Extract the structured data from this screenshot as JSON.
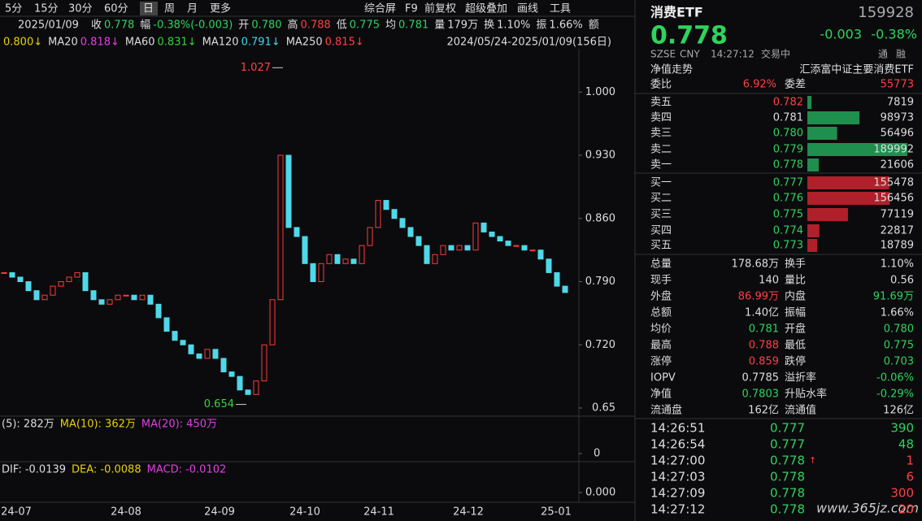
{
  "toolbar": {
    "periods": [
      "5分",
      "15分",
      "30分",
      "60分",
      "日",
      "周",
      "月",
      "更多"
    ],
    "active": "日",
    "tools": [
      "综合屏",
      "F9",
      "前复权",
      "超级叠加",
      "画线",
      "工具"
    ]
  },
  "quote_bar": {
    "date": "2025/01/09",
    "items": [
      {
        "label": "收",
        "value": "0.778",
        "color": "#2fd35c"
      },
      {
        "label": "幅",
        "value": "-0.38%(-0.003)",
        "color": "#2fd35c"
      },
      {
        "label": "开",
        "value": "0.780",
        "color": "#2fd35c"
      },
      {
        "label": "高",
        "value": "0.788",
        "color": "#ff4040"
      },
      {
        "label": "低",
        "value": "0.775",
        "color": "#2fd35c"
      },
      {
        "label": "均",
        "value": "0.781",
        "color": "#2fd35c"
      },
      {
        "label": "量",
        "value": "179万",
        "color": "#dddddd"
      },
      {
        "label": "换",
        "value": "1.10%",
        "color": "#dddddd"
      },
      {
        "label": "振",
        "value": "1.66%",
        "color": "#dddddd"
      },
      {
        "label": "额"
      }
    ]
  },
  "ma_bar": {
    "items": [
      {
        "value": "0.800↓",
        "color": "#e8d200"
      },
      {
        "label": "MA20",
        "value": "0.818↓",
        "color": "#e040e0"
      },
      {
        "label": "MA60",
        "value": "0.831↓",
        "color": "#3ad23a"
      },
      {
        "label": "MA120",
        "value": "0.791↓",
        "color": "#40d8e8"
      },
      {
        "label": "MA250",
        "value": "0.815↓",
        "color": "#ff4040"
      }
    ],
    "range": "2024/05/24-2025/01/09(156日)"
  },
  "chart_data": {
    "type": "candlestick",
    "ylim": [
      0.641,
      1.048
    ],
    "yticks": [
      0.65,
      {
        "value": 0.72,
        "label": "0.720"
      },
      {
        "value": 0.79,
        "label": "0.790"
      },
      {
        "value": 0.86,
        "label": "0.860"
      },
      {
        "value": 0.93,
        "label": "0.930"
      },
      {
        "value": 1,
        "label": "1.000"
      }
    ],
    "x_labels": [
      "24-07",
      "24-08",
      "24-09",
      "24-10",
      "24-11",
      "24-12",
      "25-01"
    ],
    "up_color": "#ff3a3a",
    "down_color": "#4fd8e8",
    "close": [
      0.8,
      0.795,
      0.79,
      0.78,
      0.77,
      0.775,
      0.785,
      0.79,
      0.795,
      0.8,
      0.78,
      0.77,
      0.765,
      0.77,
      0.775,
      0.775,
      0.77,
      0.775,
      0.765,
      0.75,
      0.735,
      0.725,
      0.72,
      0.71,
      0.705,
      0.715,
      0.705,
      0.69,
      0.685,
      0.67,
      0.665,
      0.68,
      0.72,
      0.77,
      0.93,
      0.85,
      0.84,
      0.81,
      0.79,
      0.81,
      0.82,
      0.81,
      0.815,
      0.81,
      0.83,
      0.85,
      0.88,
      0.87,
      0.86,
      0.85,
      0.84,
      0.83,
      0.81,
      0.82,
      0.83,
      0.825,
      0.83,
      0.825,
      0.855,
      0.845,
      0.84,
      0.835,
      0.83,
      0.83,
      0.825,
      0.825,
      0.815,
      0.8,
      0.785,
      0.778
    ],
    "high_mark": 1.027,
    "low_mark": 0.654
  },
  "volume": {
    "labels": [
      {
        "text": "(5): 282万",
        "color": "#dddddd"
      },
      {
        "text": "MA(10): 362万",
        "color": "#e8d200"
      },
      {
        "text": "MA(20): 450万",
        "color": "#e040e0"
      }
    ],
    "yticks": [
      0
    ]
  },
  "macd": {
    "labels": [
      {
        "text": "DIF: -0.0139",
        "color": "#dddddd"
      },
      {
        "text": "DEA: -0.0088",
        "color": "#e8d200"
      },
      {
        "text": "MACD: -0.0102",
        "color": "#e040e0"
      }
    ],
    "yticks": [
      {
        "value": 0,
        "label": "0.000"
      }
    ]
  },
  "panel": {
    "name": "消费ETF",
    "code": "159928",
    "price": "0.778",
    "change": "-0.003",
    "change_pct": "-0.38%",
    "status": [
      "SZSE",
      "CNY",
      "14:27:12",
      "交易中"
    ],
    "flags": [
      "通",
      "融"
    ],
    "nav_label": "净值走势",
    "fund_name": "汇添富中证主要消费ETF",
    "ratio": {
      "label": "委比",
      "value": "6.92%",
      "diff_label": "委差",
      "diff": "55773"
    },
    "sell": [
      {
        "label": "卖五",
        "price": "0.782",
        "color": "#ff4040",
        "volume": 7819
      },
      {
        "label": "卖四",
        "price": "0.781",
        "color": "#dddddd",
        "volume": 98973
      },
      {
        "label": "卖三",
        "price": "0.780",
        "color": "#2fd35c",
        "volume": 56496
      },
      {
        "label": "卖二",
        "price": "0.779",
        "color": "#2fd35c",
        "volume": 189992
      },
      {
        "label": "卖一",
        "price": "0.778",
        "color": "#2fd35c",
        "volume": 21606
      }
    ],
    "buy": [
      {
        "label": "买一",
        "price": "0.777",
        "color": "#2fd35c",
        "volume": 155478
      },
      {
        "label": "买二",
        "price": "0.776",
        "color": "#2fd35c",
        "volume": 156456
      },
      {
        "label": "买三",
        "price": "0.775",
        "color": "#2fd35c",
        "volume": 77119
      },
      {
        "label": "买四",
        "price": "0.774",
        "color": "#2fd35c",
        "volume": 22817
      },
      {
        "label": "买五",
        "price": "0.773",
        "color": "#2fd35c",
        "volume": 18789
      }
    ],
    "sell_color": "#1f8f4e",
    "buy_color": "#b0202a",
    "stats": [
      [
        {
          "label": "总量",
          "value": "178.68万",
          "color": "#dddddd"
        },
        {
          "label": "换手",
          "value": "1.10%",
          "color": "#dddddd"
        }
      ],
      [
        {
          "label": "现手",
          "value": "140",
          "color": "#dddddd"
        },
        {
          "label": "量比",
          "value": "0.56",
          "color": "#dddddd"
        }
      ],
      [
        {
          "label": "外盘",
          "value": "86.99万",
          "color": "#ff4040"
        },
        {
          "label": "内盘",
          "value": "91.69万",
          "color": "#2fd35c"
        }
      ],
      [
        {
          "label": "总额",
          "value": "1.40亿",
          "color": "#dddddd"
        },
        {
          "label": "振幅",
          "value": "1.66%",
          "color": "#dddddd"
        }
      ],
      [
        {
          "label": "均价",
          "value": "0.781",
          "color": "#2fd35c"
        },
        {
          "label": "开盘",
          "value": "0.780",
          "color": "#2fd35c"
        }
      ],
      [
        {
          "label": "最高",
          "value": "0.788",
          "color": "#ff4040"
        },
        {
          "label": "最低",
          "value": "0.775",
          "color": "#2fd35c"
        }
      ],
      [
        {
          "label": "涨停",
          "value": "0.859",
          "color": "#ff4040"
        },
        {
          "label": "跌停",
          "value": "0.703",
          "color": "#2fd35c"
        }
      ],
      [
        {
          "label": "IOPV",
          "value": "0.7785",
          "color": "#dddddd"
        },
        {
          "label": "溢折率",
          "value": "-0.06%",
          "color": "#2fd35c"
        }
      ],
      [
        {
          "label": "净值",
          "value": "0.7803",
          "color": "#2fd35c"
        },
        {
          "label": "升贴水率",
          "value": "-0.29%",
          "color": "#2fd35c"
        }
      ],
      [
        {
          "label": "流通盘",
          "value": "162亿",
          "color": "#dddddd"
        },
        {
          "label": "流通值",
          "value": "126亿",
          "color": "#dddddd"
        }
      ]
    ],
    "trades": [
      {
        "time": "14:26:51",
        "price": "0.777",
        "volume": "390",
        "color": "#2fd35c"
      },
      {
        "time": "14:26:54",
        "price": "0.777",
        "volume": "48",
        "color": "#2fd35c"
      },
      {
        "time": "14:27:00",
        "price": "0.778",
        "arrow": "↑",
        "volume": "1",
        "color": "#ff4040"
      },
      {
        "time": "14:27:03",
        "price": "0.778",
        "volume": "6",
        "color": "#ff4040"
      },
      {
        "time": "14:27:09",
        "price": "0.778",
        "volume": "300",
        "color": "#ff4040"
      },
      {
        "time": "14:27:12",
        "price": "0.778",
        "volume": "20",
        "color": "#ff4040"
      }
    ]
  },
  "watermark": "www.365jz.com"
}
